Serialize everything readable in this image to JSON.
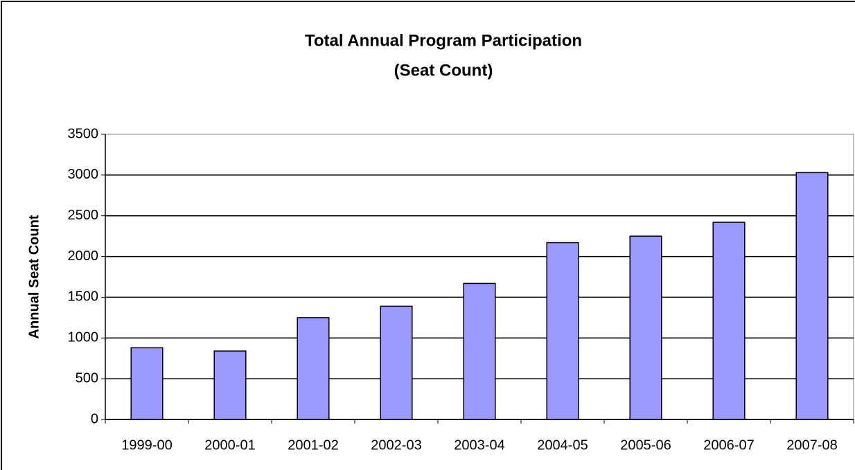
{
  "chart_data": {
    "type": "bar",
    "title": "Total Annual Program Participation",
    "subtitle": "(Seat Count)",
    "y_label": "Annual Seat Count",
    "categories": [
      "1999-00",
      "2000-01",
      "2001-02",
      "2002-03",
      "2003-04",
      "2004-05",
      "2005-06",
      "2006-07",
      "2007-08"
    ],
    "values": [
      880,
      840,
      1250,
      1390,
      1670,
      2170,
      2250,
      2420,
      3030
    ],
    "color": "#9999ff",
    "ylim": [
      0,
      3500
    ],
    "yticks": [
      0,
      500,
      1000,
      1500,
      2000,
      2500,
      3000,
      3500
    ],
    "grid": true
  }
}
